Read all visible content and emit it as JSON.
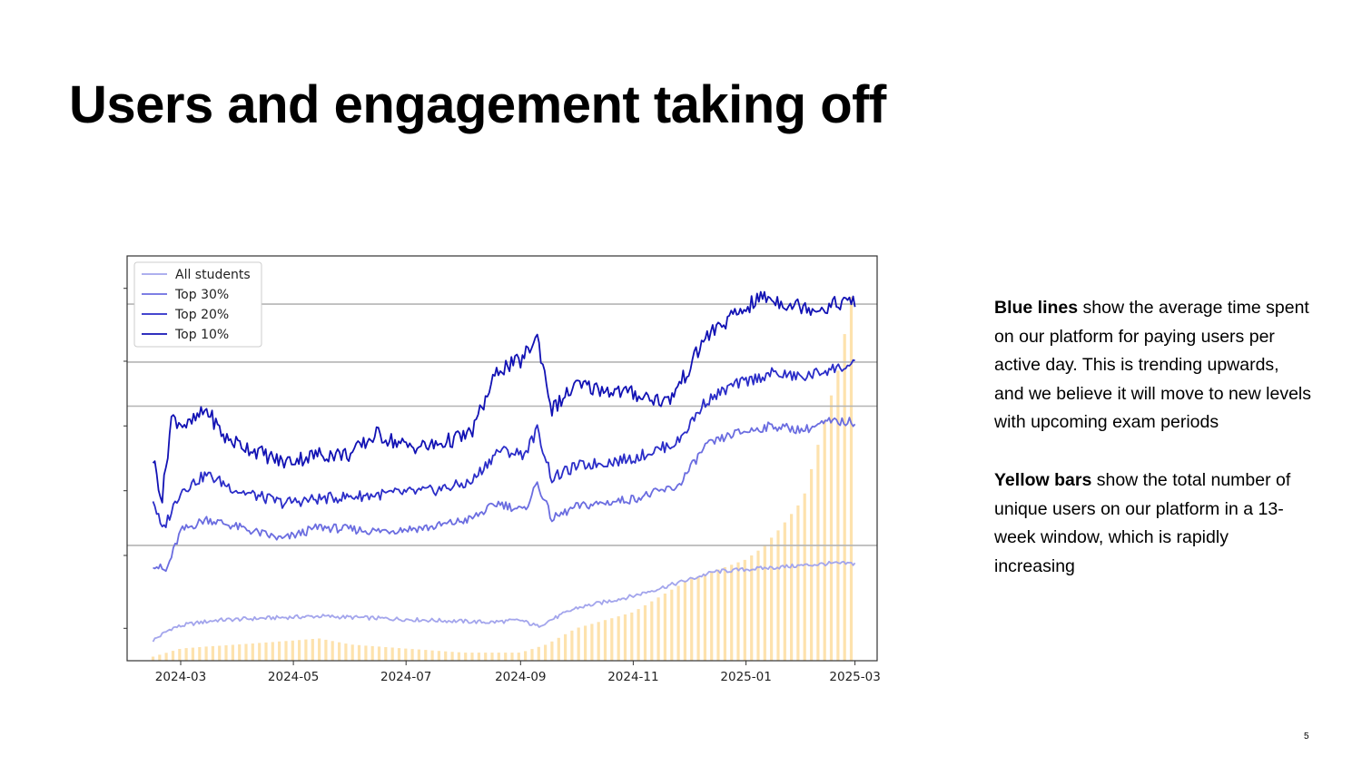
{
  "slide": {
    "title": "Users and engagement taking off",
    "page_number": "5",
    "blue_desc": {
      "bold": "Blue lines",
      "rest": " show the average time spent on our platform for paying users per active day. This is trending upwards, and we believe it will move to new levels with upcoming exam periods"
    },
    "yellow_desc": {
      "bold": "Yellow bars",
      "rest": " show the total number of unique users on our platform in a 13-week window, which is rapidly increasing"
    }
  },
  "colors": {
    "all_students": "#a3a5ec",
    "top30": "#6b6de0",
    "top20": "#2b2dc8",
    "top10": "#1212b4",
    "bars": "#fde2ad",
    "gridline": "#b4b4b4"
  },
  "chart_data": {
    "type": "line",
    "title": "",
    "xlabel": "",
    "ylabel": "",
    "x_ticks": [
      "2024-03",
      "2024-05",
      "2024-07",
      "2024-09",
      "2024-11",
      "2025-01",
      "2025-03"
    ],
    "y_ticks_labeled": false,
    "ylim": [
      0,
      100
    ],
    "horizontal_reference_lines": [
      28.5,
      62.9,
      73.8,
      88.1
    ],
    "grid": false,
    "legend_position": "top-left",
    "series": [
      {
        "name": "All students",
        "color_key": "all_students",
        "points": [
          [
            "2024-02-15",
            5
          ],
          [
            "2024-02-25",
            8
          ],
          [
            "2024-03-05",
            9
          ],
          [
            "2024-03-20",
            10
          ],
          [
            "2024-04-15",
            10.5
          ],
          [
            "2024-05-15",
            11
          ],
          [
            "2024-06-15",
            10.5
          ],
          [
            "2024-07-15",
            10
          ],
          [
            "2024-08-15",
            9.5
          ],
          [
            "2024-09-01",
            10
          ],
          [
            "2024-09-10",
            8.5
          ],
          [
            "2024-10-01",
            13
          ],
          [
            "2024-11-01",
            16
          ],
          [
            "2024-12-01",
            20
          ],
          [
            "2024-12-15",
            22
          ],
          [
            "2025-01-15",
            23
          ],
          [
            "2025-02-15",
            24
          ],
          [
            "2025-03-01",
            24
          ]
        ]
      },
      {
        "name": "Top 30%",
        "color_key": "top30",
        "points": [
          [
            "2024-02-15",
            24
          ],
          [
            "2024-02-22",
            22
          ],
          [
            "2024-03-01",
            32
          ],
          [
            "2024-03-15",
            35
          ],
          [
            "2024-04-01",
            33
          ],
          [
            "2024-04-25",
            30
          ],
          [
            "2024-05-15",
            33
          ],
          [
            "2024-06-15",
            32
          ],
          [
            "2024-07-15",
            33
          ],
          [
            "2024-08-05",
            35
          ],
          [
            "2024-08-20",
            39
          ],
          [
            "2024-09-03",
            37
          ],
          [
            "2024-09-10",
            44
          ],
          [
            "2024-09-18",
            35
          ],
          [
            "2024-10-01",
            38
          ],
          [
            "2024-11-01",
            40
          ],
          [
            "2024-11-25",
            43
          ],
          [
            "2024-12-10",
            53
          ],
          [
            "2024-12-25",
            56
          ],
          [
            "2025-01-15",
            58
          ],
          [
            "2025-02-01",
            57
          ],
          [
            "2025-02-15",
            59
          ],
          [
            "2025-03-01",
            59
          ]
        ]
      },
      {
        "name": "Top 20%",
        "color_key": "top20",
        "points": [
          [
            "2024-02-15",
            40
          ],
          [
            "2024-02-20",
            32
          ],
          [
            "2024-03-01",
            42
          ],
          [
            "2024-03-15",
            46
          ],
          [
            "2024-04-01",
            42
          ],
          [
            "2024-04-25",
            39
          ],
          [
            "2024-05-15",
            40
          ],
          [
            "2024-06-15",
            41
          ],
          [
            "2024-07-15",
            42
          ],
          [
            "2024-08-05",
            44
          ],
          [
            "2024-08-20",
            52
          ],
          [
            "2024-09-03",
            51
          ],
          [
            "2024-09-10",
            57
          ],
          [
            "2024-09-18",
            45
          ],
          [
            "2024-10-01",
            48
          ],
          [
            "2024-11-01",
            50
          ],
          [
            "2024-11-25",
            54
          ],
          [
            "2024-12-10",
            64
          ],
          [
            "2024-12-25",
            68
          ],
          [
            "2025-01-15",
            71
          ],
          [
            "2025-02-01",
            70
          ],
          [
            "2025-02-15",
            72
          ],
          [
            "2025-03-01",
            73
          ]
        ]
      },
      {
        "name": "Top 10%",
        "color_key": "top10",
        "points": [
          [
            "2024-02-15",
            50
          ],
          [
            "2024-02-20",
            40
          ],
          [
            "2024-02-25",
            60
          ],
          [
            "2024-03-05",
            58
          ],
          [
            "2024-03-15",
            62
          ],
          [
            "2024-03-25",
            55
          ],
          [
            "2024-04-10",
            52
          ],
          [
            "2024-04-25",
            49
          ],
          [
            "2024-05-15",
            51
          ],
          [
            "2024-06-01",
            51
          ],
          [
            "2024-06-15",
            56
          ],
          [
            "2024-07-01",
            53
          ],
          [
            "2024-07-15",
            53
          ],
          [
            "2024-08-05",
            56
          ],
          [
            "2024-08-20",
            72
          ],
          [
            "2024-09-01",
            74
          ],
          [
            "2024-09-10",
            80
          ],
          [
            "2024-09-18",
            62
          ],
          [
            "2024-10-01",
            68
          ],
          [
            "2024-11-01",
            66
          ],
          [
            "2024-11-20",
            64
          ],
          [
            "2024-12-01",
            72
          ],
          [
            "2024-12-10",
            80
          ],
          [
            "2024-12-25",
            85
          ],
          [
            "2025-01-10",
            90
          ],
          [
            "2025-01-25",
            88
          ],
          [
            "2025-02-10",
            87
          ],
          [
            "2025-02-25",
            89
          ],
          [
            "2025-03-01",
            88
          ]
        ]
      },
      {
        "name": "Unique users (13-week window)",
        "render": "bars",
        "color_key": "bars",
        "points": [
          [
            "2024-02-15",
            1
          ],
          [
            "2024-03-01",
            3
          ],
          [
            "2024-03-15",
            3.5
          ],
          [
            "2024-04-01",
            4
          ],
          [
            "2024-05-01",
            5
          ],
          [
            "2024-05-15",
            5.5
          ],
          [
            "2024-06-01",
            4
          ],
          [
            "2024-07-01",
            3
          ],
          [
            "2024-08-01",
            2
          ],
          [
            "2024-09-01",
            2
          ],
          [
            "2024-09-15",
            4
          ],
          [
            "2024-10-01",
            8
          ],
          [
            "2024-11-01",
            12
          ],
          [
            "2024-12-01",
            20
          ],
          [
            "2024-12-20",
            23
          ],
          [
            "2025-01-01",
            25
          ],
          [
            "2025-01-10",
            28
          ],
          [
            "2025-01-20",
            33
          ],
          [
            "2025-02-01",
            40
          ],
          [
            "2025-02-10",
            55
          ],
          [
            "2025-02-20",
            72
          ],
          [
            "2025-03-01",
            95
          ]
        ]
      }
    ]
  }
}
